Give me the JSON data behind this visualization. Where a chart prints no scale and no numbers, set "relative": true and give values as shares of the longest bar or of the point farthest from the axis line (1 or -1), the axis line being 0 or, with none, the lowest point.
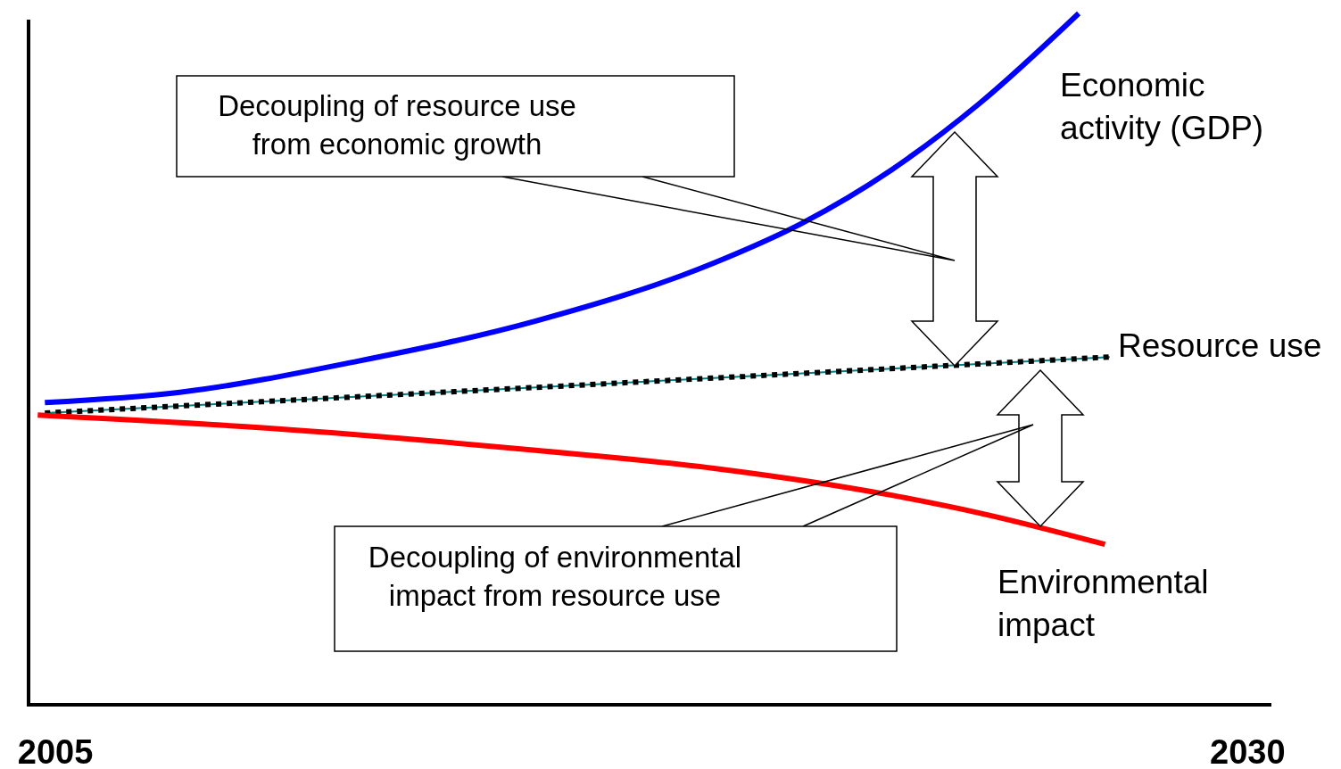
{
  "chart_data": {
    "type": "line",
    "relative": true,
    "xlim": [
      2004.4,
      2030.5
    ],
    "xticks": [
      2005,
      2030
    ],
    "grid": false,
    "legend": false,
    "marker": "none",
    "annotations": [
      "Decoupling of resource use from economic growth",
      "Decoupling of environmental impact from resource use"
    ],
    "series": [
      {
        "name": "Economic activity (GDP)",
        "color": "#0000ff",
        "line_style": "solid",
        "x": [
          2004.78,
          2007.61,
          2011.34,
          2015.07,
          2018.81,
          2020.67,
          2022.54,
          2024.4,
          2026.46
        ],
        "values": [
          0.437,
          0.452,
          0.497,
          0.555,
          0.639,
          0.697,
          0.774,
          0.871,
          1
        ]
      },
      {
        "name": "Resource use",
        "color": "#000000",
        "line_style": "dotted",
        "x": [
          2004.78,
          2015.9,
          2027.11
        ],
        "values": [
          0.422,
          0.462,
          0.503
        ]
      },
      {
        "name": "Environmental impact",
        "color": "#ff0000",
        "line_style": "solid",
        "x": [
          2004.63,
          2009.48,
          2015.07,
          2018.81,
          2022.54,
          2024.4,
          2027.01
        ],
        "values": [
          0.419,
          0.4,
          0.368,
          0.342,
          0.303,
          0.277,
          0.232
        ]
      }
    ]
  }
}
